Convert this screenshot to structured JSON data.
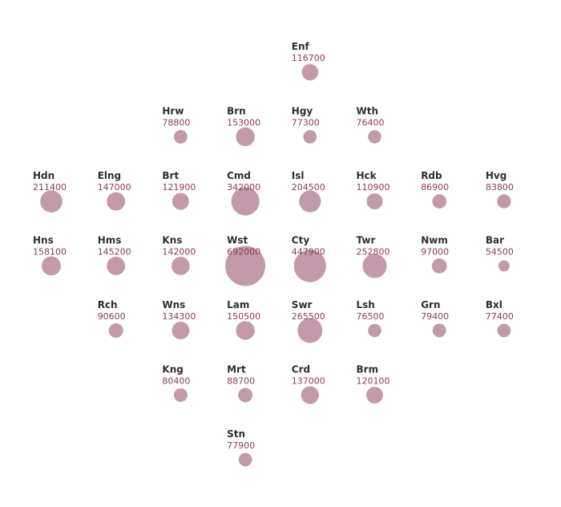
{
  "colors": {
    "bubble": "#c39aaa",
    "label": "#2e2e2e",
    "value": "#8c3a55"
  },
  "boroughs": [
    {
      "abbr": "Enf",
      "value": 116700,
      "col": 4,
      "row": 0
    },
    {
      "abbr": "Hrw",
      "value": 78800,
      "col": 2,
      "row": 1
    },
    {
      "abbr": "Brn",
      "value": 153000,
      "col": 3,
      "row": 1
    },
    {
      "abbr": "Hgy",
      "value": 77300,
      "col": 4,
      "row": 1
    },
    {
      "abbr": "Wth",
      "value": 76400,
      "col": 5,
      "row": 1
    },
    {
      "abbr": "Hdn",
      "value": 211400,
      "col": 0,
      "row": 2
    },
    {
      "abbr": "Elng",
      "value": 147000,
      "col": 1,
      "row": 2
    },
    {
      "abbr": "Brt",
      "value": 121900,
      "col": 2,
      "row": 2
    },
    {
      "abbr": "Cmd",
      "value": 342000,
      "col": 3,
      "row": 2
    },
    {
      "abbr": "Isl",
      "value": 204500,
      "col": 4,
      "row": 2
    },
    {
      "abbr": "Hck",
      "value": 110900,
      "col": 5,
      "row": 2
    },
    {
      "abbr": "Rdb",
      "value": 86900,
      "col": 6,
      "row": 2
    },
    {
      "abbr": "Hvg",
      "value": 83800,
      "col": 7,
      "row": 2
    },
    {
      "abbr": "Hns",
      "value": 158100,
      "col": 0,
      "row": 3
    },
    {
      "abbr": "Hms",
      "value": 145200,
      "col": 1,
      "row": 3
    },
    {
      "abbr": "Kns",
      "value": 142000,
      "col": 2,
      "row": 3
    },
    {
      "abbr": "Wst",
      "value": 692000,
      "col": 3,
      "row": 3
    },
    {
      "abbr": "Cty",
      "value": 447900,
      "col": 4,
      "row": 3
    },
    {
      "abbr": "Twr",
      "value": 252800,
      "col": 5,
      "row": 3
    },
    {
      "abbr": "Nwm",
      "value": 97000,
      "col": 6,
      "row": 3
    },
    {
      "abbr": "Bar",
      "value": 54500,
      "col": 7,
      "row": 3
    },
    {
      "abbr": "Rch",
      "value": 90600,
      "col": 1,
      "row": 4
    },
    {
      "abbr": "Wns",
      "value": 134300,
      "col": 2,
      "row": 4
    },
    {
      "abbr": "Lam",
      "value": 150500,
      "col": 3,
      "row": 4
    },
    {
      "abbr": "Swr",
      "value": 265500,
      "col": 4,
      "row": 4
    },
    {
      "abbr": "Lsh",
      "value": 76500,
      "col": 5,
      "row": 4
    },
    {
      "abbr": "Grn",
      "value": 79400,
      "col": 6,
      "row": 4
    },
    {
      "abbr": "Bxl",
      "value": 77400,
      "col": 7,
      "row": 4
    },
    {
      "abbr": "Kng",
      "value": 80400,
      "col": 2,
      "row": 5
    },
    {
      "abbr": "Mrt",
      "value": 88700,
      "col": 3,
      "row": 5
    },
    {
      "abbr": "Crd",
      "value": 137000,
      "col": 4,
      "row": 5
    },
    {
      "abbr": "Brm",
      "value": 120100,
      "col": 5,
      "row": 5
    },
    {
      "abbr": "Stn",
      "value": 77900,
      "col": 3,
      "row": 6
    }
  ]
}
